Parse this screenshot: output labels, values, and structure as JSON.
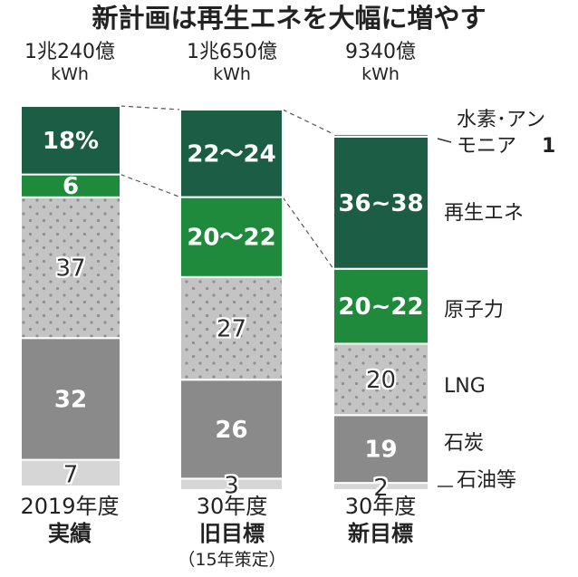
{
  "chart_data": {
    "type": "bar",
    "stacked": true,
    "title": "新計画は再生エネを大幅に増やす",
    "bars": [
      {
        "total": "1兆240億",
        "unit": "kWh",
        "year": "2019年度",
        "label": "実績",
        "note": "",
        "segments": [
          {
            "key": "oil",
            "value": 7,
            "label": "7"
          },
          {
            "key": "coal",
            "value": 32,
            "label": "32"
          },
          {
            "key": "lng",
            "value": 37,
            "label": "37"
          },
          {
            "key": "nuclear",
            "value": 6,
            "label": "6"
          },
          {
            "key": "renewable",
            "value": 18,
            "label": "18%"
          }
        ]
      },
      {
        "total": "1兆650億",
        "unit": "kWh",
        "year": "30年度",
        "label": "旧目標",
        "note": "（15年策定）",
        "segments": [
          {
            "key": "oil",
            "value": 3,
            "label": "3"
          },
          {
            "key": "coal",
            "value": 26,
            "label": "26"
          },
          {
            "key": "lng",
            "value": 27,
            "label": "27"
          },
          {
            "key": "nuclear",
            "value": 21,
            "label": "20～22"
          },
          {
            "key": "renewable",
            "value": 23,
            "label": "22～24"
          }
        ]
      },
      {
        "total": "9340億",
        "unit": "kWh",
        "year": "30年度",
        "label": "新目標",
        "note": "",
        "segments": [
          {
            "key": "oil",
            "value": 2,
            "label": "2"
          },
          {
            "key": "coal",
            "value": 19,
            "label": "19"
          },
          {
            "key": "lng",
            "value": 20,
            "label": "20"
          },
          {
            "key": "nuclear",
            "value": 21,
            "label": "20~22"
          },
          {
            "key": "renewable",
            "value": 37,
            "label": "36~38"
          },
          {
            "key": "hydrogen",
            "value": 1,
            "label": ""
          }
        ]
      }
    ],
    "categories": {
      "hydrogen_line1": "水素･アン",
      "hydrogen_line2": "モニア",
      "hydrogen_value": "1",
      "renewable": "再生エネ",
      "nuclear": "原子力",
      "lng": "LNG",
      "coal": "石炭",
      "oil": "石油等"
    },
    "colors": {
      "renewable": "#1b5e45",
      "nuclear": "#1f8a3c",
      "lng": "#c4c4c4",
      "coal": "#8a8a8a",
      "oil": "#d6d6d6",
      "hydrogen": "#2f8fd0",
      "dots": "#8f8f8f"
    }
  }
}
